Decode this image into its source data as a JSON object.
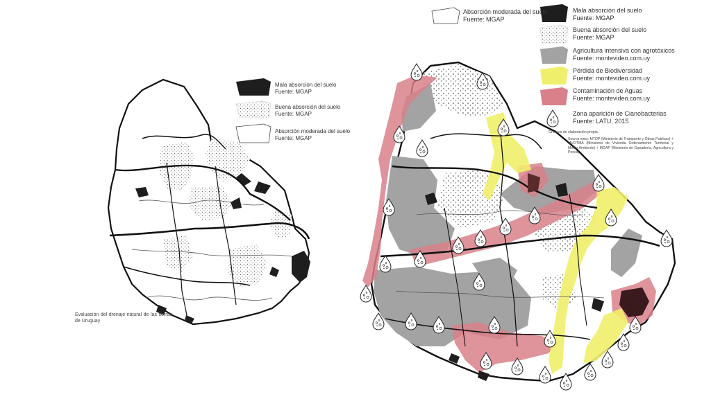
{
  "left_map": {
    "legend": [
      {
        "label": "Mala absorción del suelo",
        "source": "Fuente: MGAP",
        "fill": "#1e1e1e"
      },
      {
        "label": "Buena absorción del suelo",
        "source": "Fuente: MGAP",
        "fill": "dots"
      },
      {
        "label": "Absorción moderada del suelo",
        "source": "Fuente: MGAP",
        "fill": "#ffffff"
      }
    ],
    "caption": "Evaluación del drenaje natural de las tierras de Uruguay"
  },
  "right_map": {
    "legend_col1": [
      {
        "label": "Absorción moderada del suelo",
        "source": "Fuente: MGAP",
        "fill": "#ffffff"
      }
    ],
    "legend_col2": [
      {
        "label": "Mala absorción del suelo",
        "source": "Fuente: MGAP",
        "fill": "#1e1e1e"
      },
      {
        "label": "Buena absorción del suelo",
        "source": "Fuente: MGAP",
        "fill": "dots"
      },
      {
        "label": "Agricultura intensiva con agrotóxicos",
        "source": "Fuente: montevideo.com.uy",
        "fill": "#a3a3a3"
      },
      {
        "label": "Pérdida de Biodiversidad",
        "source": "Fuente: montevideo.com.uy",
        "fill": "#f0ef6c"
      },
      {
        "label": "Contaminación de Aguas",
        "source": "Fuente: montevideo.com.uy",
        "fill": "#d9808a"
      },
      {
        "label": "Zona aparición de Cianobacterias",
        "source": "Fuente: LATU, 2015",
        "fill": "droplet"
      }
    ],
    "credits_title": "Graficos de elaboración propia.",
    "credits_body": "Source wms: MTOP (Ministerio de Transporte y Obras Publicas) + MVOTMA (Ministerio de Vivienda Ordenamiento Territorial y Medio Ambiente) + MGAP (Ministerio de Ganadería, Agricultura y Pesca)"
  },
  "colors": {
    "bad_absorption": "#1e1e1e",
    "agriculture": "#a3a3a3",
    "biodiversity": "#f0ef6c",
    "water_contamination": "#d9808a",
    "border": "#111111"
  },
  "icons": [
    "droplet-cyanobacteria-icon"
  ]
}
